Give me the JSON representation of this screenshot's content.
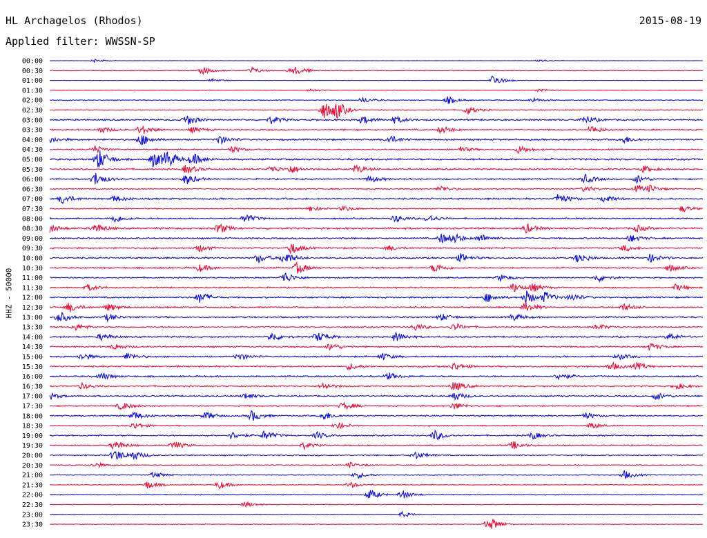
{
  "header": {
    "station": "HL Archagelos (Rhodos)",
    "date": "2015-08-19",
    "filter": "Applied filter: WWSSN-SP"
  },
  "y_axis_label": "HHZ - 50000",
  "colors": {
    "even_trace": "#1010d8",
    "odd_trace": "#e8103a"
  },
  "chart_data": {
    "type": "line",
    "title": "HL Archagelos (Rhodos)",
    "subtitle": "Applied filter: WWSSN-SP",
    "ylabel": "HHZ - 50000",
    "xlabel": "",
    "grid": false,
    "legend": "none",
    "categories": [
      "00:00",
      "00:30",
      "01:00",
      "01:30",
      "02:00",
      "02:30",
      "03:00",
      "03:30",
      "04:00",
      "04:30",
      "05:00",
      "05:30",
      "06:00",
      "06:30",
      "07:00",
      "07:30",
      "08:00",
      "08:30",
      "09:00",
      "09:30",
      "10:00",
      "10:30",
      "11:00",
      "11:30",
      "12:00",
      "12:30",
      "13:00",
      "13:30",
      "14:00",
      "14:30",
      "15:00",
      "15:30",
      "16:00",
      "16:30",
      "17:00",
      "17:30",
      "18:00",
      "18:30",
      "19:00",
      "19:30",
      "20:00",
      "20:30",
      "21:00",
      "21:30",
      "22:00",
      "22:30",
      "23:00",
      "23:30"
    ],
    "trace_minutes": 30,
    "activity": [
      0.15,
      0.35,
      0.2,
      0.2,
      0.45,
      0.5,
      0.85,
      0.75,
      0.85,
      0.65,
      0.95,
      0.8,
      0.75,
      0.65,
      0.85,
      0.55,
      0.7,
      0.9,
      0.8,
      0.75,
      0.85,
      0.8,
      0.65,
      0.7,
      0.8,
      0.75,
      0.8,
      0.7,
      0.8,
      0.75,
      0.75,
      0.75,
      0.8,
      0.7,
      0.75,
      0.7,
      0.75,
      0.6,
      0.7,
      0.6,
      0.65,
      0.45,
      0.45,
      0.4,
      0.45,
      0.35,
      0.3,
      0.35
    ],
    "events": [
      [
        [
          0.07,
          0.8
        ],
        [
          0.75,
          0.6
        ]
      ],
      [
        [
          0.235,
          1.6
        ],
        [
          0.31,
          1.4
        ],
        [
          0.37,
          1.3
        ],
        [
          0.38,
          1.2
        ]
      ],
      [
        [
          0.68,
          2.6
        ],
        [
          0.25,
          0.8
        ]
      ],
      [
        [
          0.75,
          0.8
        ],
        [
          0.4,
          0.7
        ]
      ],
      [
        [
          0.48,
          1.3
        ],
        [
          0.61,
          1.6
        ],
        [
          0.74,
          1.0
        ]
      ],
      [
        [
          0.42,
          4.0
        ],
        [
          0.44,
          3.2
        ],
        [
          0.64,
          1.9
        ]
      ],
      [
        [
          0.21,
          2.5
        ],
        [
          0.34,
          1.6
        ],
        [
          0.48,
          1.6
        ],
        [
          0.53,
          1.5
        ],
        [
          0.82,
          1.8
        ]
      ],
      [
        [
          0.08,
          1.4
        ],
        [
          0.14,
          2.2
        ],
        [
          0.22,
          1.3
        ],
        [
          0.6,
          1.7
        ],
        [
          0.83,
          1.6
        ]
      ],
      [
        [
          0.0,
          1.6
        ],
        [
          0.14,
          2.6
        ],
        [
          0.26,
          2.0
        ],
        [
          0.52,
          1.9
        ],
        [
          0.88,
          1.5
        ]
      ],
      [
        [
          0.07,
          1.7
        ],
        [
          0.28,
          1.5
        ],
        [
          0.63,
          1.3
        ],
        [
          0.72,
          1.8
        ]
      ],
      [
        [
          0.075,
          4.5
        ],
        [
          0.16,
          3.5
        ],
        [
          0.18,
          3.2
        ],
        [
          0.22,
          2.6
        ]
      ],
      [
        [
          0.21,
          2.1
        ],
        [
          0.34,
          1.5
        ],
        [
          0.37,
          1.7
        ],
        [
          0.47,
          1.8
        ],
        [
          0.91,
          1.5
        ]
      ],
      [
        [
          0.07,
          3.0
        ],
        [
          0.21,
          2.4
        ],
        [
          0.49,
          1.6
        ],
        [
          0.82,
          2.0
        ],
        [
          0.9,
          1.8
        ]
      ],
      [
        [
          0.6,
          1.4
        ],
        [
          0.82,
          1.3
        ],
        [
          0.9,
          1.5
        ],
        [
          0.92,
          1.3
        ]
      ],
      [
        [
          0.02,
          2.2
        ],
        [
          0.1,
          1.5
        ],
        [
          0.78,
          2.4
        ],
        [
          0.85,
          1.7
        ]
      ],
      [
        [
          0.4,
          1.3
        ],
        [
          0.45,
          1.2
        ],
        [
          0.97,
          1.5
        ]
      ],
      [
        [
          0.1,
          1.8
        ],
        [
          0.3,
          2.0
        ],
        [
          0.53,
          1.6
        ],
        [
          0.58,
          1.7
        ]
      ],
      [
        [
          0.0,
          1.8
        ],
        [
          0.07,
          2.1
        ],
        [
          0.26,
          2.3
        ],
        [
          0.73,
          2.0
        ],
        [
          0.9,
          1.4
        ]
      ],
      [
        [
          0.6,
          2.2
        ],
        [
          0.62,
          1.6
        ],
        [
          0.66,
          1.8
        ],
        [
          0.89,
          1.6
        ]
      ],
      [
        [
          0.23,
          1.6
        ],
        [
          0.37,
          2.6
        ],
        [
          0.52,
          1.2
        ],
        [
          0.88,
          1.4
        ]
      ],
      [
        [
          0.32,
          2.0
        ],
        [
          0.36,
          2.8
        ],
        [
          0.63,
          1.8
        ],
        [
          0.81,
          2.2
        ],
        [
          0.92,
          1.8
        ]
      ],
      [
        [
          0.23,
          1.6
        ],
        [
          0.38,
          2.5
        ],
        [
          0.59,
          2.0
        ],
        [
          0.95,
          1.6
        ]
      ],
      [
        [
          0.36,
          2.6
        ],
        [
          0.69,
          1.4
        ],
        [
          0.84,
          1.7
        ]
      ],
      [
        [
          0.06,
          1.4
        ],
        [
          0.71,
          2.0
        ],
        [
          0.74,
          1.7
        ],
        [
          0.96,
          1.5
        ]
      ],
      [
        [
          0.23,
          2.4
        ],
        [
          0.67,
          2.0
        ],
        [
          0.73,
          3.0
        ],
        [
          0.76,
          2.2
        ],
        [
          0.8,
          1.6
        ]
      ],
      [
        [
          0.03,
          2.2
        ],
        [
          0.09,
          1.6
        ],
        [
          0.73,
          2.3
        ],
        [
          0.88,
          1.6
        ]
      ],
      [
        [
          0.015,
          2.6
        ],
        [
          0.09,
          1.5
        ],
        [
          0.6,
          1.6
        ],
        [
          0.71,
          1.6
        ]
      ],
      [
        [
          0.04,
          1.5
        ],
        [
          0.56,
          1.6
        ],
        [
          0.62,
          1.6
        ],
        [
          0.84,
          1.3
        ]
      ],
      [
        [
          0.08,
          1.6
        ],
        [
          0.34,
          2.0
        ],
        [
          0.41,
          2.2
        ],
        [
          0.53,
          2.2
        ],
        [
          0.95,
          1.6
        ]
      ],
      [
        [
          0.1,
          1.3
        ],
        [
          0.43,
          1.7
        ],
        [
          0.92,
          1.7
        ]
      ],
      [
        [
          0.05,
          1.6
        ],
        [
          0.12,
          1.6
        ],
        [
          0.29,
          1.6
        ],
        [
          0.51,
          1.6
        ],
        [
          0.87,
          1.5
        ]
      ],
      [
        [
          0.46,
          1.4
        ],
        [
          0.62,
          1.8
        ],
        [
          0.86,
          1.8
        ],
        [
          0.9,
          1.6
        ]
      ],
      [
        [
          0.08,
          1.6
        ],
        [
          0.52,
          1.5
        ],
        [
          0.78,
          1.6
        ]
      ],
      [
        [
          0.05,
          1.3
        ],
        [
          0.42,
          1.5
        ],
        [
          0.62,
          2.3
        ],
        [
          0.96,
          1.4
        ]
      ],
      [
        [
          0.0,
          1.6
        ],
        [
          0.3,
          1.4
        ],
        [
          0.62,
          2.0
        ],
        [
          0.93,
          1.6
        ]
      ],
      [
        [
          0.11,
          1.8
        ],
        [
          0.45,
          1.8
        ],
        [
          0.62,
          1.6
        ]
      ],
      [
        [
          0.13,
          1.8
        ],
        [
          0.24,
          1.6
        ],
        [
          0.31,
          2.4
        ],
        [
          0.42,
          1.9
        ],
        [
          0.82,
          1.5
        ]
      ],
      [
        [
          0.13,
          1.4
        ],
        [
          0.44,
          1.6
        ],
        [
          0.83,
          1.4
        ]
      ],
      [
        [
          0.28,
          1.6
        ],
        [
          0.33,
          2.2
        ],
        [
          0.41,
          1.5
        ],
        [
          0.59,
          2.3
        ],
        [
          0.74,
          1.6
        ]
      ],
      [
        [
          0.1,
          2.3
        ],
        [
          0.19,
          2.0
        ],
        [
          0.39,
          1.5
        ],
        [
          0.71,
          1.8
        ]
      ],
      [
        [
          0.1,
          2.8
        ],
        [
          0.13,
          1.8
        ],
        [
          0.56,
          1.8
        ]
      ],
      [
        [
          0.07,
          1.2
        ],
        [
          0.46,
          1.2
        ]
      ],
      [
        [
          0.16,
          1.5
        ],
        [
          0.47,
          1.6
        ],
        [
          0.88,
          2.0
        ]
      ],
      [
        [
          0.15,
          1.8
        ],
        [
          0.26,
          1.8
        ],
        [
          0.46,
          1.4
        ]
      ],
      [
        [
          0.49,
          2.2
        ],
        [
          0.54,
          2.0
        ]
      ],
      [
        [
          0.3,
          1.2
        ]
      ],
      [
        [
          0.54,
          1.2
        ]
      ],
      [
        [
          0.67,
          1.8
        ],
        [
          0.68,
          1.4
        ]
      ]
    ]
  }
}
